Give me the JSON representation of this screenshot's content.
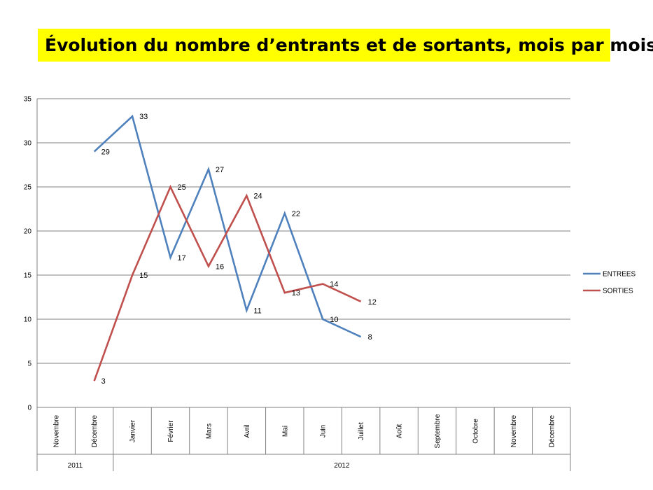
{
  "title": "Évolution du nombre d’entrants et de sortants, mois par mois",
  "chart_data": {
    "type": "line",
    "categories": [
      "Novembre",
      "Décembre",
      "Janvier",
      "Février",
      "Mars",
      "Avril",
      "Mai",
      "Juin",
      "Juillet",
      "Août",
      "Septembre",
      "Octobre",
      "Novembre",
      "Décembre"
    ],
    "year_groups": [
      {
        "label": "2011",
        "start": 0,
        "end": 1
      },
      {
        "label": "2012",
        "start": 2,
        "end": 13
      }
    ],
    "ylim": [
      0,
      35
    ],
    "yticks": [
      0,
      5,
      10,
      15,
      20,
      25,
      30,
      35
    ],
    "grid": true,
    "legend_position": "right",
    "series": [
      {
        "name": "ENTREES",
        "color": "#4f81bd",
        "values": [
          null,
          29,
          33,
          17,
          27,
          11,
          22,
          10,
          8,
          null,
          null,
          null,
          null,
          null
        ]
      },
      {
        "name": "SORTIES",
        "color": "#c0504d",
        "values": [
          null,
          3,
          15,
          25,
          16,
          24,
          13,
          14,
          12,
          null,
          null,
          null,
          null,
          null
        ]
      }
    ]
  }
}
